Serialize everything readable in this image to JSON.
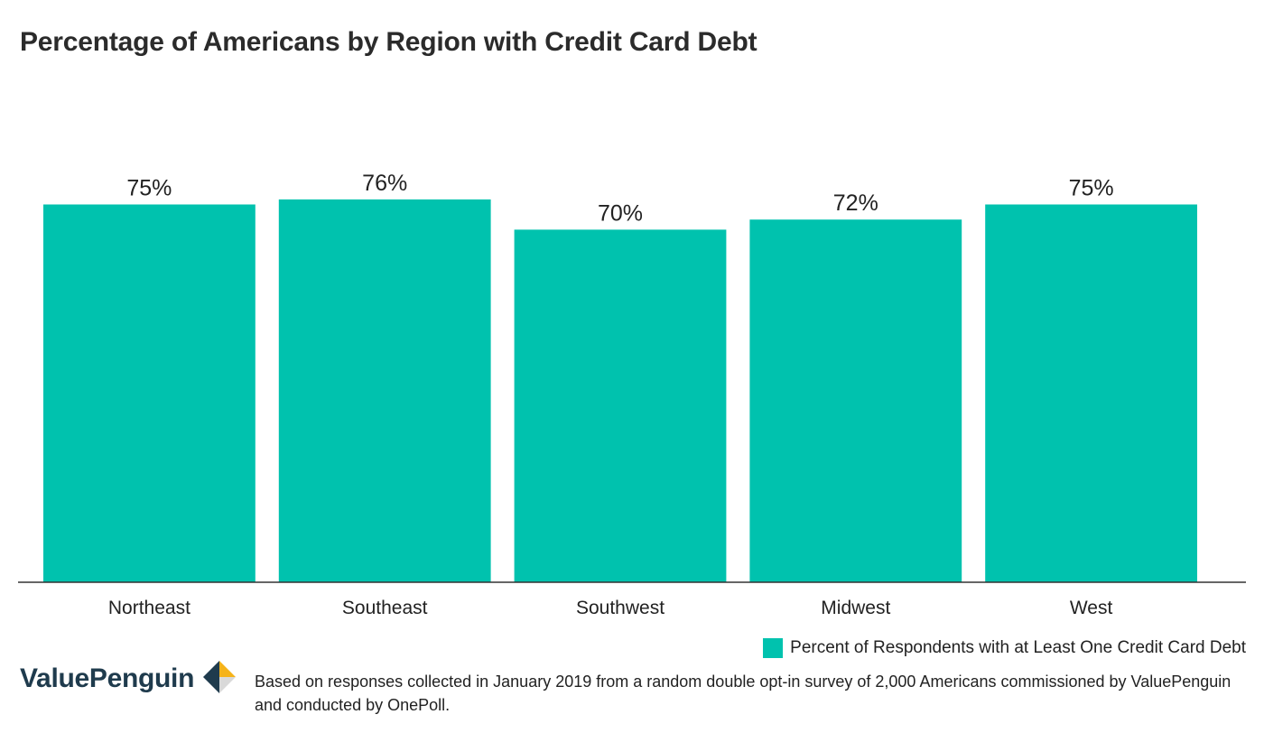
{
  "chart_data": {
    "type": "bar",
    "title": "Percentage of Americans by Region with Credit Card Debt",
    "categories": [
      "Northeast",
      "Southeast",
      "Southwest",
      "Midwest",
      "West"
    ],
    "series": [
      {
        "name": "Percent of Respondents with at Least One Credit Card Debt",
        "values": [
          75,
          76,
          70,
          72,
          75
        ],
        "data_labels": [
          "75%",
          "76%",
          "70%",
          "72%",
          "75%"
        ],
        "color": "#00c2ae"
      }
    ],
    "ylim": [
      0,
      100
    ],
    "xlabel": "",
    "ylabel": "",
    "grid": false,
    "legend_position": "bottom-right"
  },
  "branding": {
    "logo_text": "ValuePenguin",
    "logo_icon": "valuepenguin-logo-icon"
  },
  "footnote": "Based on responses collected in January 2019 from a random double opt-in survey of 2,000 Americans commissioned by ValuePenguin and conducted by OnePoll.",
  "colors": {
    "bar": "#00c2ae",
    "axis": "#333333",
    "logo_dark": "#1f3b4d",
    "logo_accent": "#f5b31a"
  }
}
